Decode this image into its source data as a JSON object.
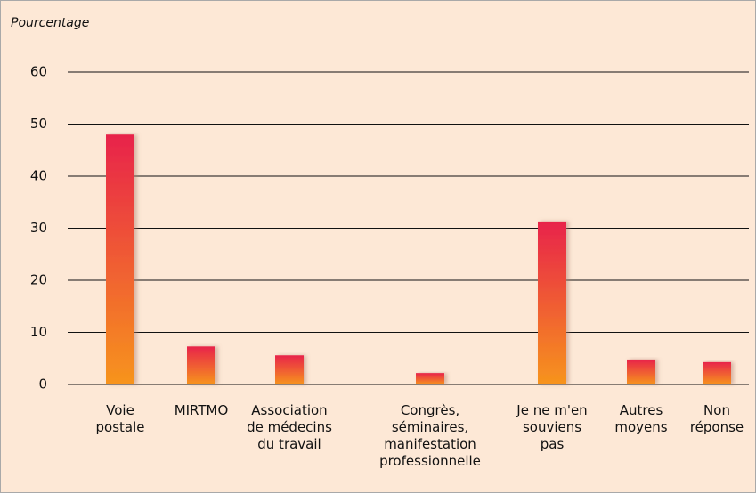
{
  "chart_data": {
    "type": "bar",
    "y_label": "Pourcentage",
    "categories": [
      "Voie\npostale",
      "MIRTMO",
      "Association\nde médecins\ndu travail",
      "Congrès,\nséminaires,\nmanifestation\nprofessionnelle",
      "Je ne m'en\nsouviens\npas",
      "Autres\nmoyens",
      "Non\nréponse"
    ],
    "values": [
      48.0,
      7.3,
      5.6,
      2.2,
      31.3,
      4.8,
      4.3
    ],
    "colors": [
      "#e8234a",
      "#f7941d"
    ],
    "ylim": [
      0,
      60
    ],
    "yticks": [
      0,
      10,
      20,
      30,
      40,
      50,
      60
    ],
    "grid": true
  }
}
